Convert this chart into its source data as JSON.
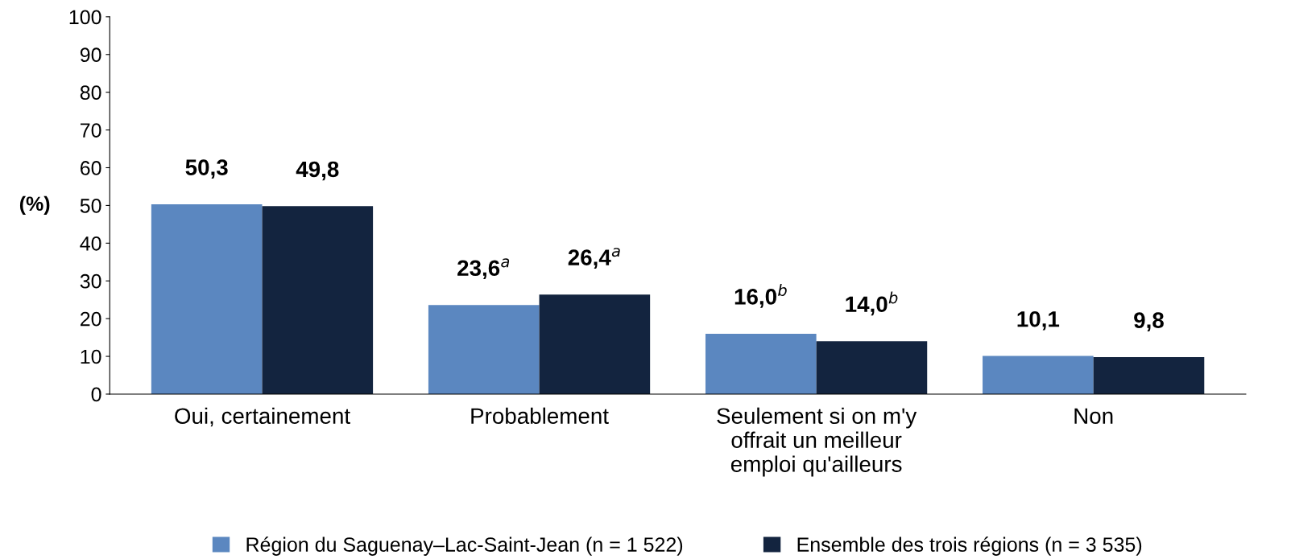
{
  "chart_data": {
    "type": "bar",
    "ylabel": "(%)",
    "categories": [
      "Oui, certainement",
      "Probablement",
      "Seulement si on m'y\noffrait un meilleur\nemploi qu'ailleurs",
      "Non"
    ],
    "series": [
      {
        "name": "Région du Saguenay–Lac-Saint-Jean (n = 1 522)",
        "color": "#5b87c0",
        "values": [
          50.3,
          23.6,
          16.0,
          10.1
        ],
        "value_labels": [
          "50,3",
          "23,6$^{a}$",
          "16,0$^{b}$",
          "10,1"
        ]
      },
      {
        "name": "Ensemble des trois régions (n = 3 535)",
        "color": "#13243f",
        "values": [
          49.8,
          26.4,
          14.0,
          9.8
        ],
        "value_labels": [
          "49,8",
          "26,4$^{a}$",
          "14,0$^{b}$",
          "9,8"
        ]
      }
    ],
    "ylim": [
      0,
      100
    ],
    "yticks": [
      0,
      10,
      20,
      30,
      40,
      50,
      60,
      70,
      80,
      90,
      100
    ],
    "grid": false,
    "legend": "bottom"
  }
}
